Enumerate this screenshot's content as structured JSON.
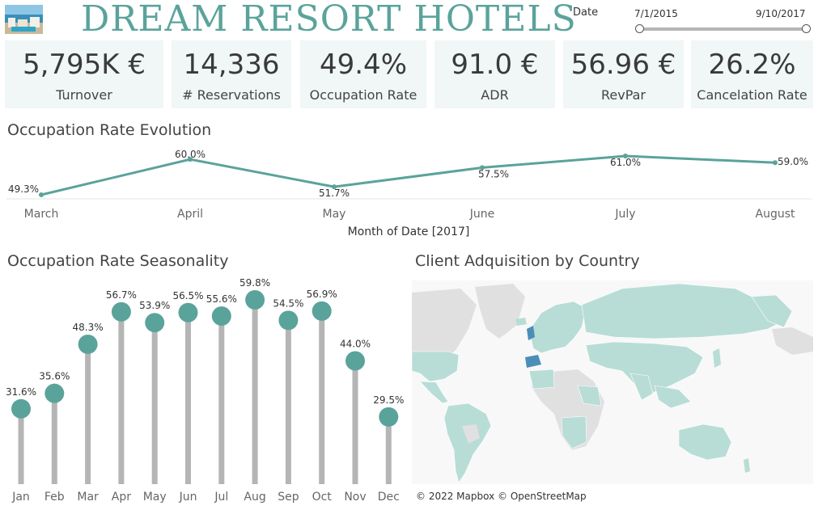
{
  "header": {
    "brand": "DREAM RESORT HOTELS",
    "date_label": "Date",
    "date_start": "7/1/2015",
    "date_end": "9/10/2017"
  },
  "kpis": [
    {
      "value": "5,795K €",
      "label": "Turnover"
    },
    {
      "value": "14,336",
      "label": "# Reservations"
    },
    {
      "value": "49.4%",
      "label": "Occupation Rate"
    },
    {
      "value": "91.0 €",
      "label": "ADR"
    },
    {
      "value": "56.96 €",
      "label": "RevPar"
    },
    {
      "value": "26.2%",
      "label": "Cancelation Rate"
    }
  ],
  "sections": {
    "evolution_title": "Occupation Rate Evolution",
    "seasonality_title": "Occupation Rate Seasonality",
    "map_title": "Client Adquisition by Country",
    "map_credit": "© 2022 Mapbox © OpenStreetMap"
  },
  "colors": {
    "accent": "#5aa39b",
    "kpi_bg": "#f0f7f6",
    "stem": "#b5b5b5",
    "land": "#b8ddd6",
    "land_nodata": "#e0e0e0"
  },
  "chart_data": [
    {
      "type": "line",
      "title": "Occupation Rate Evolution",
      "xlabel": "Month of Date [2017]",
      "categories": [
        "March",
        "April",
        "May",
        "June",
        "July",
        "August"
      ],
      "values": [
        49.3,
        60.0,
        51.7,
        57.5,
        61.0,
        59.0
      ],
      "labels": [
        "49.3%",
        "60.0%",
        "51.7%",
        "57.5%",
        "61.0%",
        "59.0%"
      ],
      "grid": false
    },
    {
      "type": "bar",
      "subtype": "lollipop",
      "title": "Occupation Rate Seasonality",
      "categories": [
        "Jan",
        "Feb",
        "Mar",
        "Apr",
        "May",
        "Jun",
        "Jul",
        "Aug",
        "Sep",
        "Oct",
        "Nov",
        "Dec"
      ],
      "values": [
        31.6,
        35.6,
        48.3,
        56.7,
        53.9,
        56.5,
        55.6,
        59.8,
        54.5,
        56.9,
        44.0,
        29.5
      ],
      "labels": [
        "31.6%",
        "35.6%",
        "48.3%",
        "56.7%",
        "53.9%",
        "56.5%",
        "55.6%",
        "59.8%",
        "54.5%",
        "56.9%",
        "44.0%",
        "29.5%"
      ],
      "ylim": [
        0,
        60
      ],
      "grid": false
    }
  ]
}
